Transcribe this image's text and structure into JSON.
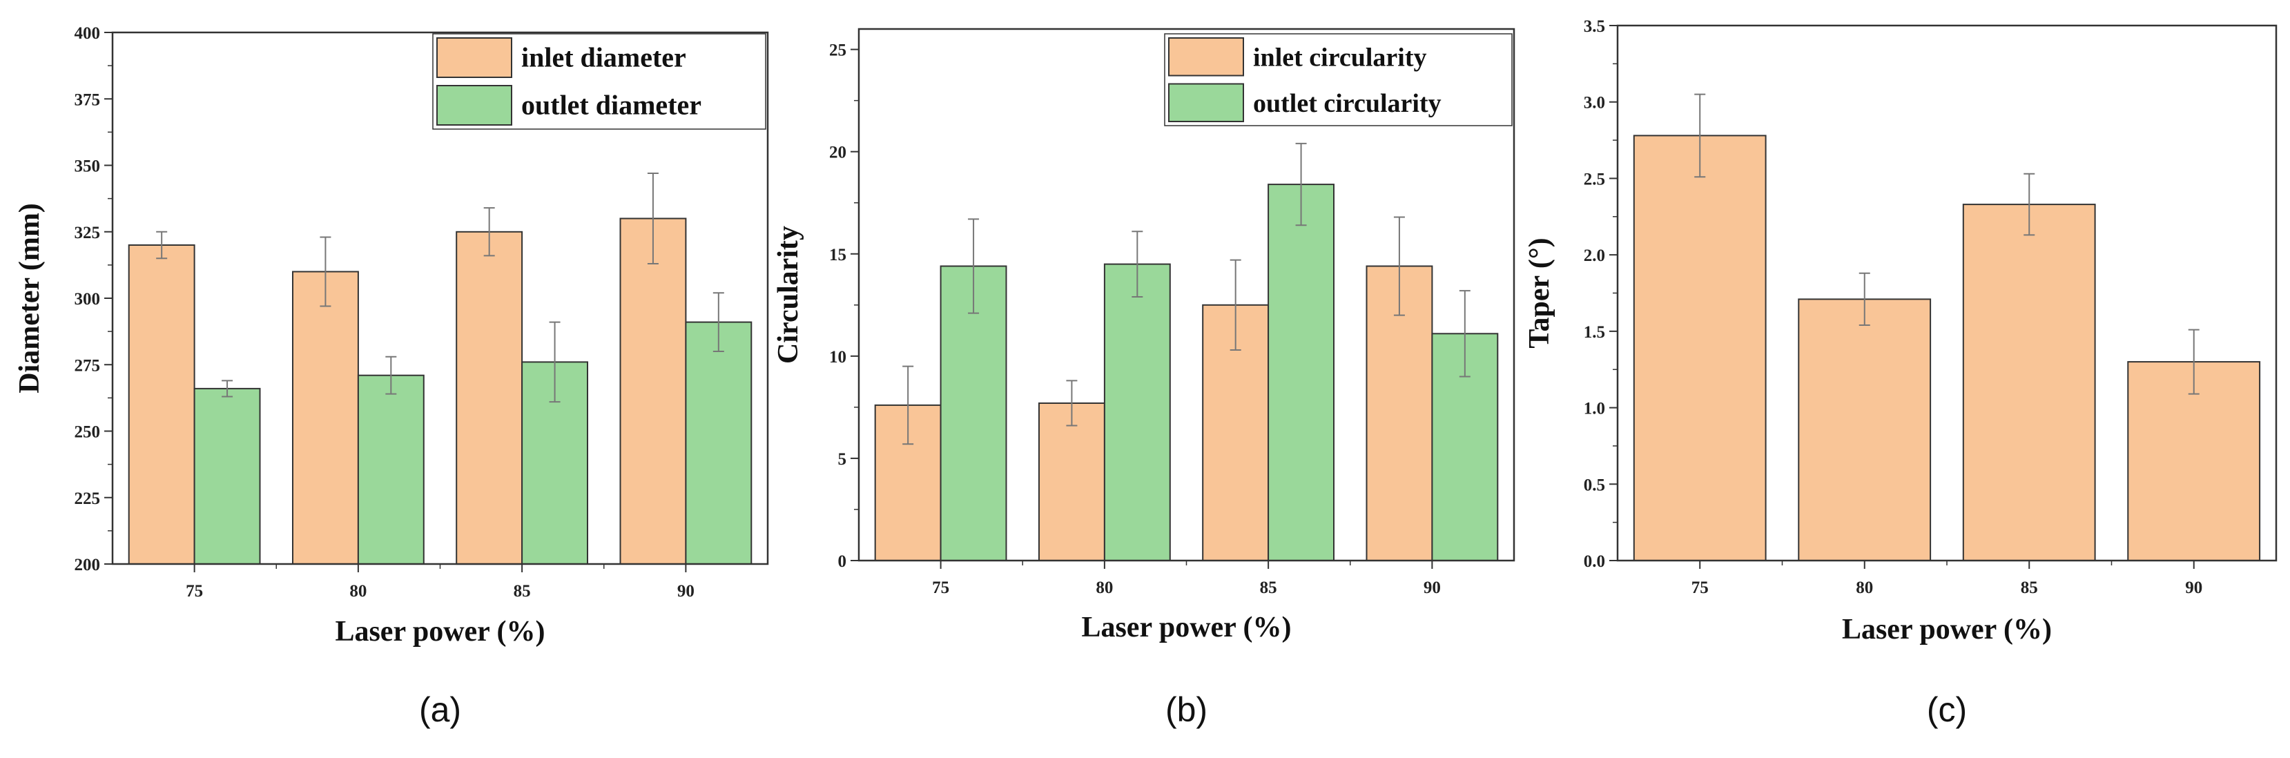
{
  "colors": {
    "inlet": "#F9C597",
    "outlet": "#9AD89A",
    "stroke": "#333333",
    "error": "#777777"
  },
  "chart_data": [
    {
      "id": "a",
      "type": "bar",
      "panel_label": "(a)",
      "xlabel": "Laser power (%)",
      "ylabel": "Diameter (mm)",
      "categories": [
        "75",
        "80",
        "85",
        "90"
      ],
      "ylim": [
        200,
        400
      ],
      "major_ticks": [
        200,
        225,
        250,
        275,
        300,
        325,
        350,
        375,
        400
      ],
      "tick_labels": [
        "200",
        "225",
        "250",
        "275",
        "300",
        "325",
        "350",
        "375",
        "400"
      ],
      "legend_position": "top-right",
      "series": [
        {
          "name": "inlet diameter",
          "color_key": "inlet",
          "values": [
            320,
            310,
            325,
            330
          ],
          "errors": [
            5,
            13,
            9,
            17
          ]
        },
        {
          "name": "outlet diameter",
          "color_key": "outlet",
          "values": [
            266,
            271,
            276,
            291
          ],
          "errors": [
            3,
            7,
            15,
            11
          ]
        }
      ]
    },
    {
      "id": "b",
      "type": "bar",
      "panel_label": "(b)",
      "xlabel": "Laser power (%)",
      "ylabel": "Circularity",
      "categories": [
        "75",
        "80",
        "85",
        "90"
      ],
      "ylim": [
        0,
        26
      ],
      "major_ticks": [
        0,
        5,
        10,
        15,
        20,
        25
      ],
      "tick_labels": [
        "0",
        "5",
        "10",
        "15",
        "20",
        "25"
      ],
      "legend_position": "top-right",
      "series": [
        {
          "name": "inlet circularity",
          "color_key": "inlet",
          "values": [
            7.6,
            7.7,
            12.5,
            14.4
          ],
          "errors": [
            1.9,
            1.1,
            2.2,
            2.4
          ]
        },
        {
          "name": "outlet circularity",
          "color_key": "outlet",
          "values": [
            14.4,
            14.5,
            18.4,
            11.1
          ],
          "errors": [
            2.3,
            1.6,
            2.0,
            2.1
          ]
        }
      ]
    },
    {
      "id": "c",
      "type": "bar",
      "panel_label": "(c)",
      "xlabel": "Laser power (%)",
      "ylabel": "Taper (°)",
      "categories": [
        "75",
        "80",
        "85",
        "90"
      ],
      "ylim": [
        0,
        3.5
      ],
      "major_ticks": [
        0,
        0.5,
        1.0,
        1.5,
        2.0,
        2.5,
        3.0,
        3.5
      ],
      "tick_labels": [
        "0.0",
        "0.5",
        "1.0",
        "1.5",
        "2.0",
        "2.5",
        "3.0",
        "3.5"
      ],
      "legend_position": "none",
      "series": [
        {
          "name": "taper",
          "color_key": "inlet",
          "values": [
            2.78,
            1.71,
            2.33,
            1.3
          ],
          "errors": [
            0.27,
            0.17,
            0.2,
            0.21
          ]
        }
      ]
    }
  ]
}
